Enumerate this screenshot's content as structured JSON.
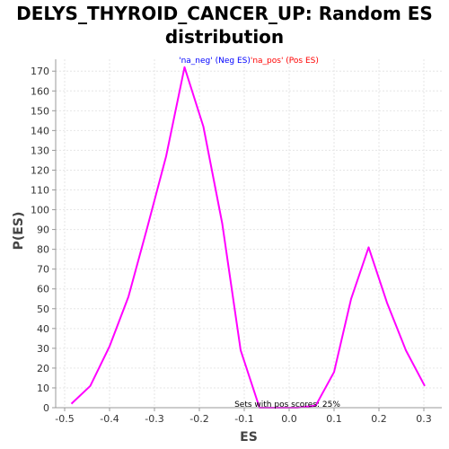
{
  "chart_data": {
    "type": "line",
    "title": "DELYS_THYROID_CANCER_UP: Random ES distribution",
    "xlabel": "ES",
    "ylabel": "P(ES)",
    "xlim": [
      -0.52,
      0.34
    ],
    "ylim": [
      0,
      176
    ],
    "xticks": [
      -0.5,
      -0.4,
      -0.3,
      -0.2,
      -0.1,
      0.0,
      0.1,
      0.2,
      0.3
    ],
    "xtick_labels": [
      "-0.5",
      "-0.4",
      "-0.3",
      "-0.2",
      "-0.1",
      "0.0",
      "0.1",
      "0.2",
      "0.3"
    ],
    "yticks": [
      0,
      10,
      20,
      30,
      40,
      50,
      60,
      70,
      80,
      90,
      100,
      110,
      120,
      130,
      140,
      150,
      160,
      170
    ],
    "grid": true,
    "legend": {
      "placement": "top-center",
      "entries": [
        {
          "label": "'na_neg' (Neg ES)",
          "color": "#0000ff"
        },
        {
          "label": "'na_pos' (Pos ES)",
          "color": "#ff0000"
        }
      ]
    },
    "annotation": "Sets with pos scores: 25%",
    "series": [
      {
        "color": "#ff00ff",
        "x": [
          -0.485,
          -0.443,
          -0.4,
          -0.358,
          -0.316,
          -0.274,
          -0.233,
          -0.191,
          -0.149,
          -0.108,
          -0.066,
          -0.024,
          0.018,
          0.059,
          0.1,
          0.138,
          0.177,
          0.218,
          0.26,
          0.302
        ],
        "y": [
          2,
          11,
          31,
          56,
          91,
          127,
          172,
          142,
          93,
          29,
          0,
          0,
          0,
          1,
          18,
          55,
          81,
          53,
          29,
          11
        ]
      }
    ]
  }
}
